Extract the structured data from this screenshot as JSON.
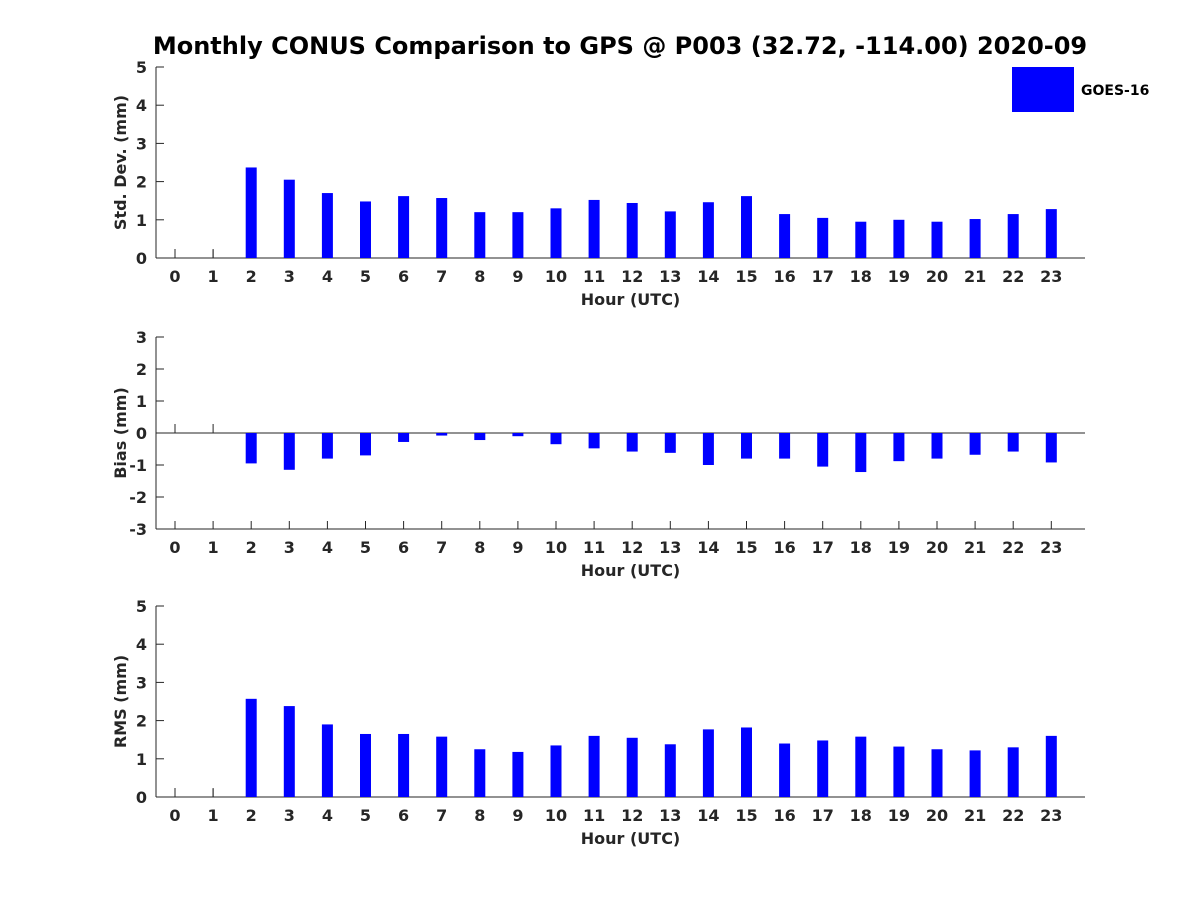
{
  "title": "Monthly CONUS Comparison to GPS @ P003 (32.72, -114.00) 2020-09",
  "colors": {
    "bar": "#0000ff",
    "axis": "#262626"
  },
  "chart_data": [
    {
      "type": "bar",
      "title": "",
      "xlabel": "Hour (UTC)",
      "ylabel": "Std. Dev. (mm)",
      "ylim": [
        0,
        5
      ],
      "yticks": [
        0,
        1,
        2,
        3,
        4,
        5
      ],
      "categories": [
        "0",
        "1",
        "2",
        "3",
        "4",
        "5",
        "6",
        "7",
        "8",
        "9",
        "10",
        "11",
        "12",
        "13",
        "14",
        "15",
        "16",
        "17",
        "18",
        "19",
        "20",
        "21",
        "22",
        "23"
      ],
      "series": [
        {
          "name": "GOES-16",
          "values": [
            null,
            null,
            2.37,
            2.05,
            1.7,
            1.48,
            1.62,
            1.57,
            1.2,
            1.2,
            1.3,
            1.52,
            1.44,
            1.22,
            1.46,
            1.62,
            1.15,
            1.05,
            0.95,
            1.0,
            0.95,
            1.02,
            1.15,
            1.28
          ]
        }
      ],
      "legend": {
        "position": "top-right",
        "entries": [
          "GOES-16"
        ]
      }
    },
    {
      "type": "bar",
      "title": "",
      "xlabel": "Hour (UTC)",
      "ylabel": "Bias (mm)",
      "ylim": [
        -3,
        3
      ],
      "yticks": [
        -3,
        -2,
        -1,
        0,
        1,
        2,
        3
      ],
      "categories": [
        "0",
        "1",
        "2",
        "3",
        "4",
        "5",
        "6",
        "7",
        "8",
        "9",
        "10",
        "11",
        "12",
        "13",
        "14",
        "15",
        "16",
        "17",
        "18",
        "19",
        "20",
        "21",
        "22",
        "23"
      ],
      "series": [
        {
          "name": "GOES-16",
          "values": [
            null,
            null,
            -0.95,
            -1.15,
            -0.8,
            -0.7,
            -0.28,
            -0.08,
            -0.22,
            -0.1,
            -0.35,
            -0.48,
            -0.58,
            -0.62,
            -1.0,
            -0.8,
            -0.8,
            -1.05,
            -1.22,
            -0.88,
            -0.8,
            -0.68,
            -0.58,
            -0.92
          ]
        }
      ]
    },
    {
      "type": "bar",
      "title": "",
      "xlabel": "Hour (UTC)",
      "ylabel": "RMS (mm)",
      "ylim": [
        0,
        5
      ],
      "yticks": [
        0,
        1,
        2,
        3,
        4,
        5
      ],
      "categories": [
        "0",
        "1",
        "2",
        "3",
        "4",
        "5",
        "6",
        "7",
        "8",
        "9",
        "10",
        "11",
        "12",
        "13",
        "14",
        "15",
        "16",
        "17",
        "18",
        "19",
        "20",
        "21",
        "22",
        "23"
      ],
      "series": [
        {
          "name": "GOES-16",
          "values": [
            null,
            null,
            2.57,
            2.38,
            1.9,
            1.65,
            1.65,
            1.58,
            1.25,
            1.18,
            1.35,
            1.6,
            1.55,
            1.38,
            1.77,
            1.82,
            1.4,
            1.48,
            1.58,
            1.32,
            1.25,
            1.22,
            1.3,
            1.6
          ]
        }
      ]
    }
  ]
}
